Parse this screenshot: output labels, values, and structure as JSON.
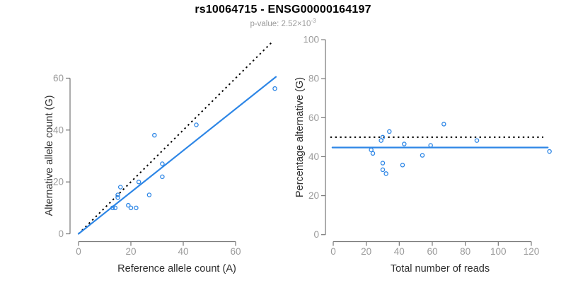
{
  "header": {
    "title": "rs10064715 - ENSG00000164197",
    "subtitle_main": "p-value: 2.52×10",
    "subtitle_exponent": "-3"
  },
  "colors": {
    "accent_blue": "#2D86E6",
    "reference_black": "#000000",
    "axis_gray": "#767676",
    "tick_label_gray": "#9a9a9a",
    "axis_title_dark": "#2d2d2d",
    "subtitle_gray": "#9b9b9b"
  },
  "chart_data": [
    {
      "id": "allele-counts",
      "type": "scatter",
      "title": "",
      "xlabel": "Reference allele count (A)",
      "ylabel": "Alternative allele count (G)",
      "xticks": [
        0,
        20,
        40,
        60
      ],
      "yticks": [
        0,
        20,
        40,
        60
      ],
      "xlim": [
        0,
        75
      ],
      "ylim": [
        0,
        75
      ],
      "grid": false,
      "legend": false,
      "points": [
        [
          13,
          10
        ],
        [
          14,
          10
        ],
        [
          15,
          14
        ],
        [
          15,
          15
        ],
        [
          16,
          18
        ],
        [
          19,
          11
        ],
        [
          20,
          10
        ],
        [
          22,
          10
        ],
        [
          23,
          20
        ],
        [
          27,
          15
        ],
        [
          29,
          38
        ],
        [
          32,
          22
        ],
        [
          32,
          27
        ],
        [
          45,
          42
        ],
        [
          75,
          56
        ]
      ],
      "lines": [
        {
          "name": "identity-line",
          "style": "dotted",
          "color": "#000000",
          "from": [
            0,
            0
          ],
          "to": [
            74,
            74
          ],
          "meaning": "y = x (balanced alleles)"
        },
        {
          "name": "regression-line",
          "style": "solid",
          "color": "#2D86E6",
          "from": [
            0,
            0
          ],
          "to": [
            75.4,
            60.5
          ],
          "meaning": "fit slope ~0.80"
        }
      ]
    },
    {
      "id": "percentage-vs-reads",
      "type": "scatter",
      "title": "",
      "xlabel": "Total number of reads",
      "ylabel": "Percentage alternative (G)",
      "xticks": [
        0,
        20,
        40,
        60,
        80,
        100,
        120
      ],
      "yticks": [
        0,
        20,
        40,
        60,
        80,
        100
      ],
      "xlim": [
        0,
        131
      ],
      "ylim": [
        0,
        100
      ],
      "grid": false,
      "legend": false,
      "points": [
        [
          23,
          43.5
        ],
        [
          24,
          41.7
        ],
        [
          29,
          48.3
        ],
        [
          30,
          50.0
        ],
        [
          34,
          52.9
        ],
        [
          30,
          36.7
        ],
        [
          30,
          33.3
        ],
        [
          32,
          31.3
        ],
        [
          43,
          46.5
        ],
        [
          42,
          35.7
        ],
        [
          67,
          56.7
        ],
        [
          54,
          40.7
        ],
        [
          59,
          45.8
        ],
        [
          87,
          48.3
        ],
        [
          131,
          42.7
        ]
      ],
      "lines": [
        {
          "name": "expected-50pct-line",
          "style": "dotted",
          "color": "#000000",
          "from": [
            -1.8,
            50
          ],
          "to": [
            127.3,
            50
          ],
          "meaning": "expected 50%"
        },
        {
          "name": "mean-percentage-line",
          "style": "solid",
          "color": "#2D86E6",
          "from": [
            -0.5,
            44.7
          ],
          "to": [
            130,
            44.7
          ],
          "meaning": "observed mean ~44.7%"
        }
      ]
    }
  ]
}
